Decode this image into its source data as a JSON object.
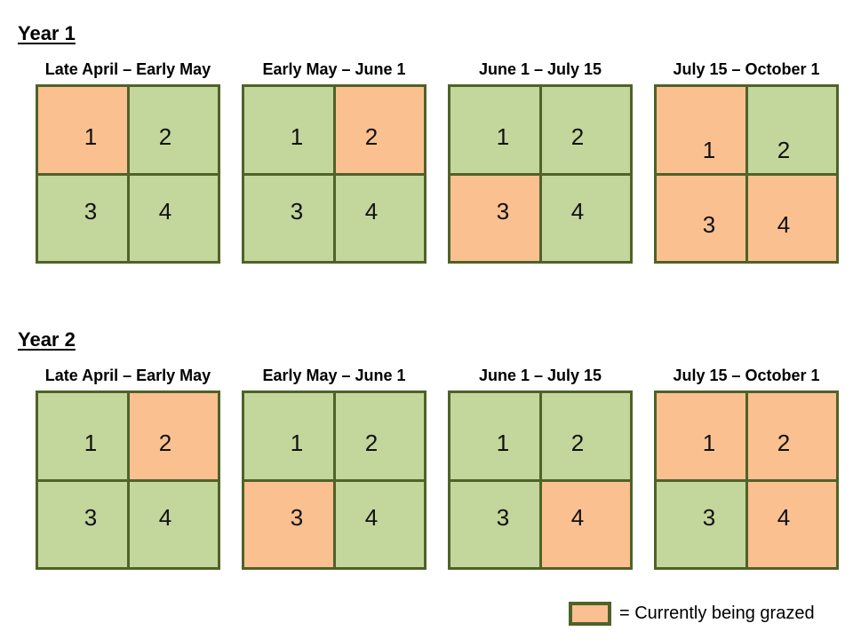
{
  "colors": {
    "grazed_fill": "#FAC090",
    "rested_fill": "#C3D69B",
    "border": "#4F6228"
  },
  "legend": {
    "label": "= Currently being grazed",
    "swatch_meaning": "grazed"
  },
  "years": [
    {
      "title": "Year 1",
      "periods": [
        {
          "title": "Late April – Early May",
          "cells": [
            {
              "label": "1",
              "grazed": true
            },
            {
              "label": "2",
              "grazed": false
            },
            {
              "label": "3",
              "grazed": false
            },
            {
              "label": "4",
              "grazed": false
            }
          ]
        },
        {
          "title": "Early May – June 1",
          "cells": [
            {
              "label": "1",
              "grazed": false
            },
            {
              "label": "2",
              "grazed": true
            },
            {
              "label": "3",
              "grazed": false
            },
            {
              "label": "4",
              "grazed": false
            }
          ]
        },
        {
          "title": "June 1 – July 15",
          "cells": [
            {
              "label": "1",
              "grazed": false
            },
            {
              "label": "2",
              "grazed": false
            },
            {
              "label": "3",
              "grazed": true
            },
            {
              "label": "4",
              "grazed": false
            }
          ]
        },
        {
          "title": "July 15 – October 1",
          "cells": [
            {
              "label": "1",
              "grazed": true
            },
            {
              "label": "2",
              "grazed": false
            },
            {
              "label": "3",
              "grazed": true
            },
            {
              "label": "4",
              "grazed": true
            }
          ]
        }
      ]
    },
    {
      "title": "Year 2",
      "periods": [
        {
          "title": "Late April – Early May",
          "cells": [
            {
              "label": "1",
              "grazed": false
            },
            {
              "label": "2",
              "grazed": true
            },
            {
              "label": "3",
              "grazed": false
            },
            {
              "label": "4",
              "grazed": false
            }
          ]
        },
        {
          "title": "Early May – June 1",
          "cells": [
            {
              "label": "1",
              "grazed": false
            },
            {
              "label": "2",
              "grazed": false
            },
            {
              "label": "3",
              "grazed": true
            },
            {
              "label": "4",
              "grazed": false
            }
          ]
        },
        {
          "title": "June 1 – July 15",
          "cells": [
            {
              "label": "1",
              "grazed": false
            },
            {
              "label": "2",
              "grazed": false
            },
            {
              "label": "3",
              "grazed": false
            },
            {
              "label": "4",
              "grazed": true
            }
          ]
        },
        {
          "title": "July 15 – October 1",
          "cells": [
            {
              "label": "1",
              "grazed": true
            },
            {
              "label": "2",
              "grazed": true
            },
            {
              "label": "3",
              "grazed": false
            },
            {
              "label": "4",
              "grazed": true
            }
          ]
        }
      ]
    }
  ]
}
